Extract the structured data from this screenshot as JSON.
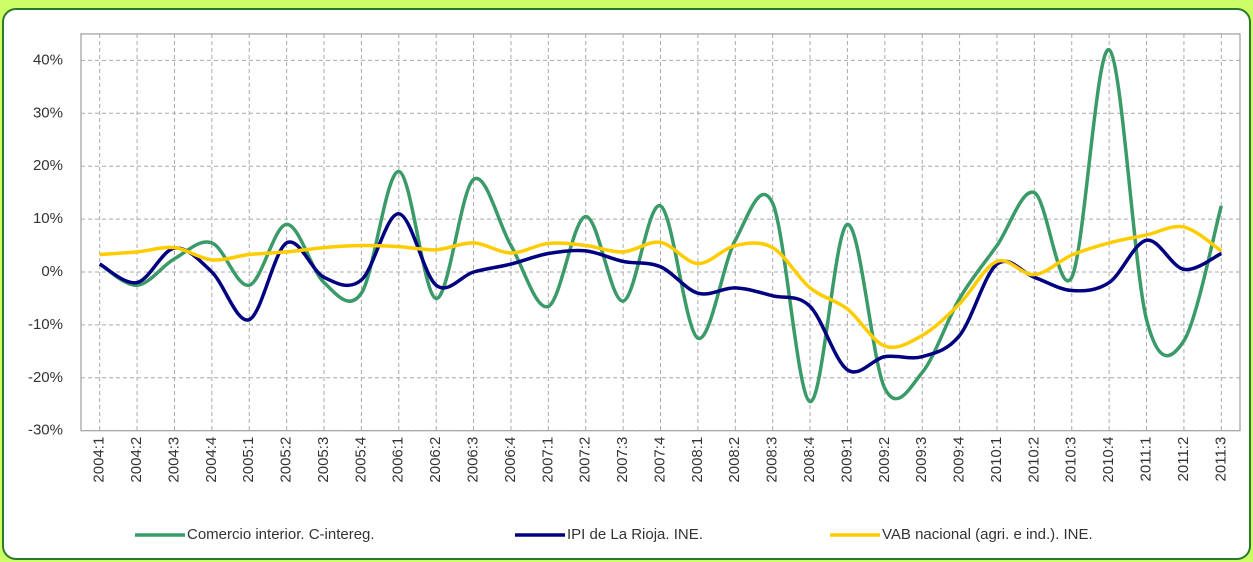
{
  "chart_data": {
    "type": "line",
    "categories": [
      "2004:1",
      "2004:2",
      "2004:3",
      "2004:4",
      "2005:1",
      "2005:2",
      "2005:3",
      "2005:4",
      "2006:1",
      "2006:2",
      "2006:3",
      "2006:4",
      "2007:1",
      "2007:2",
      "2007:3",
      "2007:4",
      "2008:1",
      "2008:2",
      "2008:3",
      "2008:4",
      "2009:1",
      "2009:2",
      "2009:3",
      "2009:4",
      "2010:1",
      "2010:2",
      "2010:3",
      "2010:4",
      "2011:1",
      "2011:2",
      "2011:3"
    ],
    "series": [
      {
        "name": "Comercio interior. C-intereg.",
        "color": "#3a9a68",
        "values": [
          1.5,
          -2.5,
          2.5,
          5.5,
          -2.5,
          9,
          -2,
          -4,
          19,
          -5,
          17.5,
          5,
          -6.5,
          10.5,
          -5.5,
          12.5,
          -12.5,
          6,
          13,
          -24.5,
          9,
          -22,
          -19,
          -5,
          5,
          15,
          -1,
          42,
          -9,
          -13,
          12.5
        ]
      },
      {
        "name": "IPI de La Rioja. INE.",
        "color": "#000080",
        "values": [
          1.5,
          -2,
          4.5,
          0,
          -9,
          5.5,
          -1,
          -1.5,
          11,
          -2.5,
          0,
          1.5,
          3.5,
          4,
          2,
          1,
          -4,
          -3,
          -4.5,
          -6.5,
          -18.5,
          -16,
          -16,
          -12,
          1.5,
          -1,
          -3.5,
          -2,
          6,
          0.5,
          3.5
        ]
      },
      {
        "name": "VAB nacional (agri. e ind.). INE.",
        "color": "#ffcc00",
        "values": [
          3.3,
          3.8,
          4.6,
          2.3,
          3.3,
          3.8,
          4.6,
          5,
          4.8,
          4.2,
          5.5,
          3.6,
          5.4,
          5,
          3.8,
          5.6,
          1.6,
          5,
          4.6,
          -3,
          -7,
          -14,
          -12,
          -6,
          2,
          -0.5,
          3.2,
          5.5,
          7,
          8.5,
          4
        ]
      }
    ],
    "ylim": [
      -30,
      45
    ],
    "yticks": [
      {
        "value": -30,
        "label": "-30%"
      },
      {
        "value": -20,
        "label": "-20%"
      },
      {
        "value": -10,
        "label": "-10%"
      },
      {
        "value": 0,
        "label": "0%"
      },
      {
        "value": 10,
        "label": "10%"
      },
      {
        "value": 20,
        "label": "20%"
      },
      {
        "value": 30,
        "label": "30%"
      },
      {
        "value": 40,
        "label": "40%"
      }
    ],
    "grid": true
  }
}
